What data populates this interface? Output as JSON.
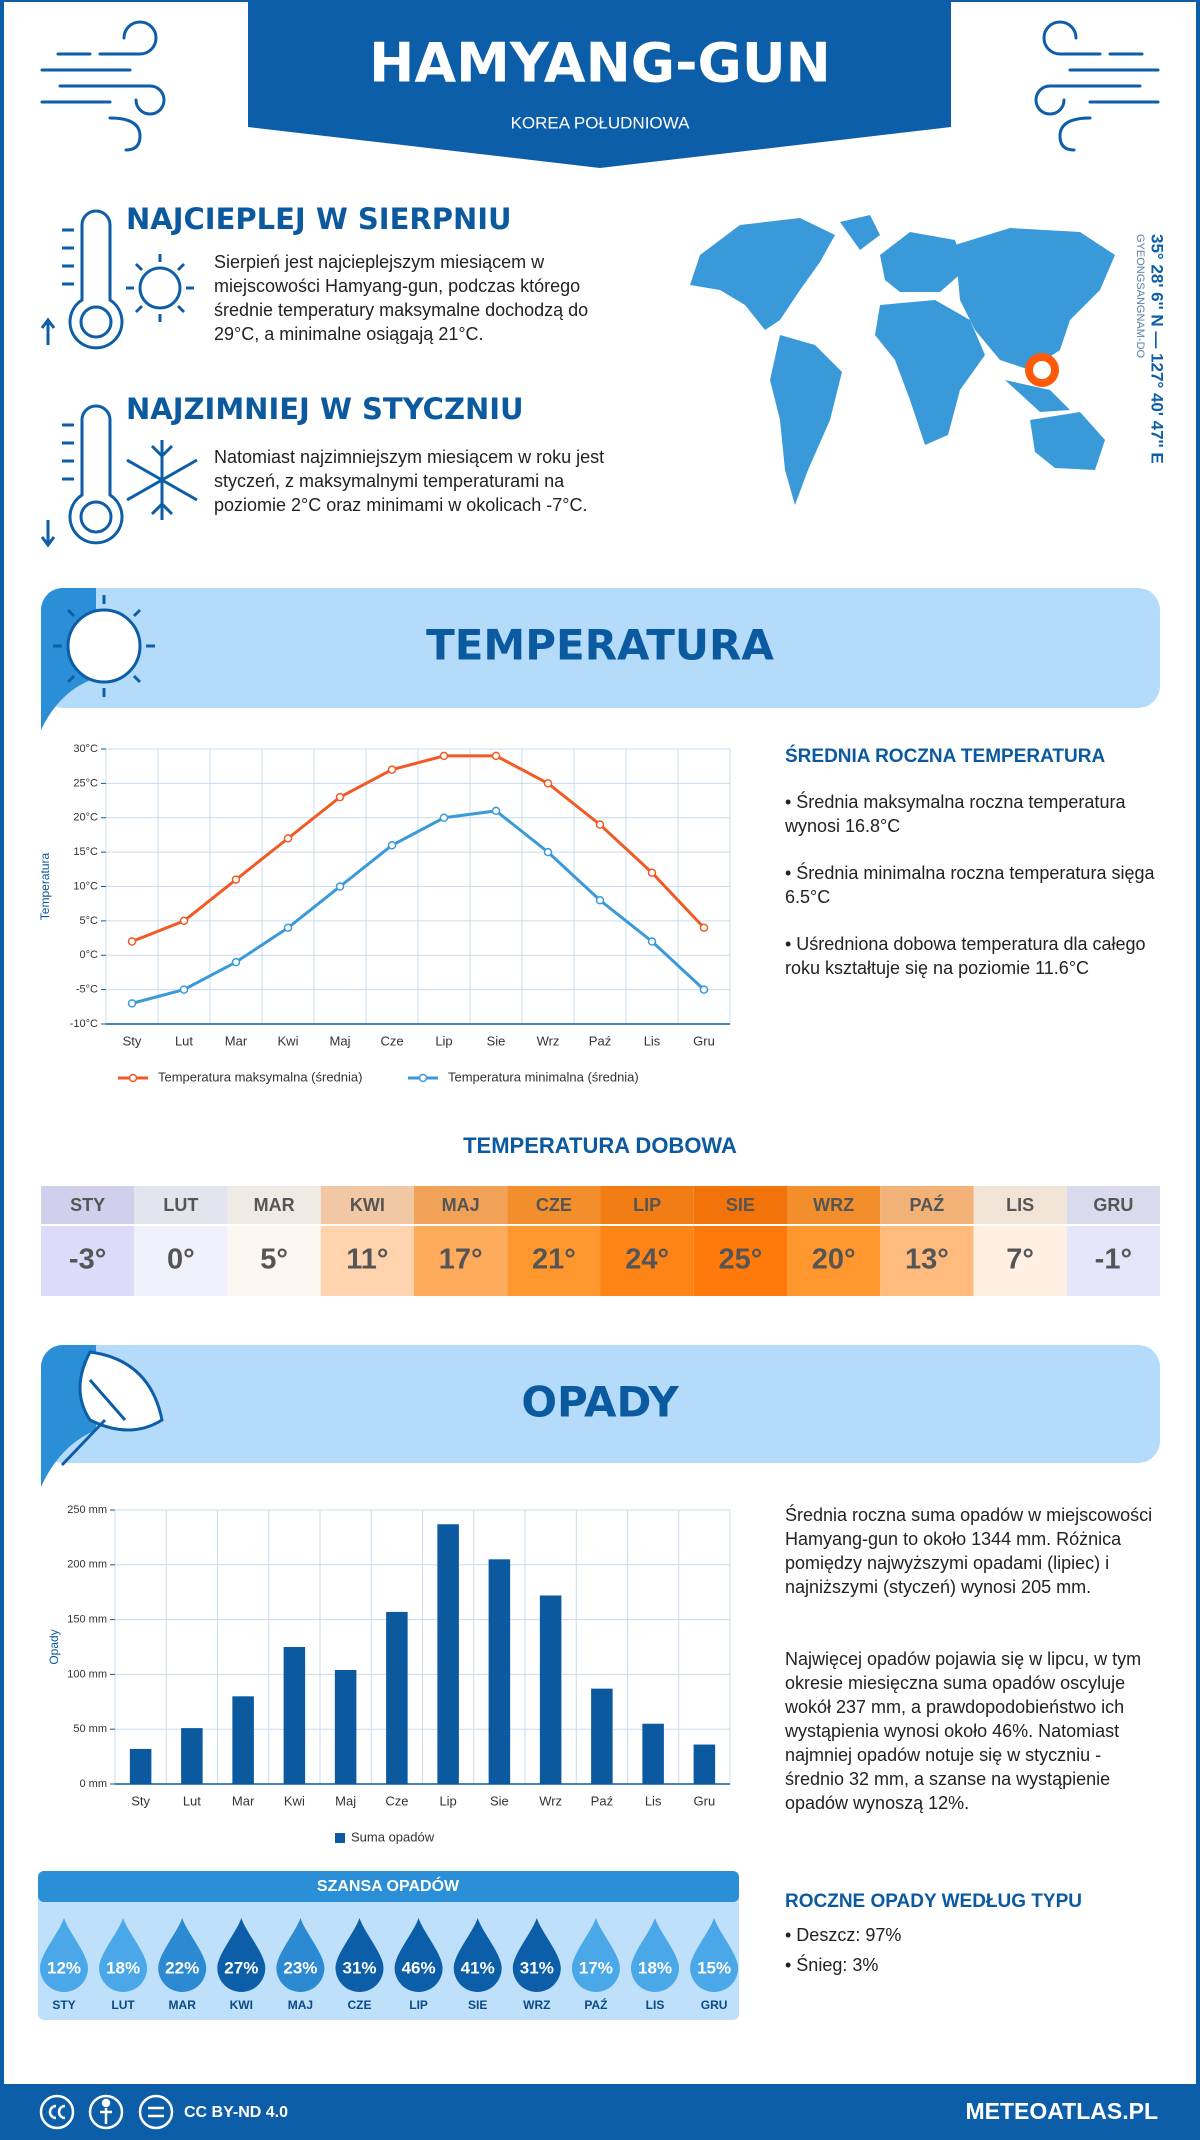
{
  "header": {
    "title": "HAMYANG-GUN",
    "subtitle": "KOREA POŁUDNIOWA"
  },
  "facts": [
    {
      "heading": "NAJCIEPLEJ W SIERPNIU",
      "text": "Sierpień jest najcieplejszym miesiącem w miejscowości Hamyang-gun, podczas którego średnie temperatury maksymalne dochodzą do 29°C, a minimalne osiągają 21°C."
    },
    {
      "heading": "NAJZIMNIEJ W STYCZNIU",
      "text": "Natomiast najzimniejszym miesiącem w roku jest styczeń, z maksymalnymi temperaturami na poziomie 2°C oraz minimami w okolicach -7°C."
    }
  ],
  "location": {
    "coordinates": "35° 28' 6'' N — 127° 40' 47'' E",
    "region": "GYEONGSANGNAM-DO"
  },
  "sections": {
    "temperature": "TEMPERATURA",
    "precipitation": "OPADY"
  },
  "chart_data": [
    {
      "type": "line",
      "y_label": "Temperatura",
      "categories": [
        "Sty",
        "Lut",
        "Mar",
        "Kwi",
        "Maj",
        "Cze",
        "Lip",
        "Sie",
        "Wrz",
        "Paź",
        "Lis",
        "Gru"
      ],
      "series": [
        {
          "name": "Temperatura maksymalna (średnia)",
          "color": "#f15a24",
          "values": [
            2,
            5,
            11,
            17,
            23,
            27,
            29,
            29,
            25,
            19,
            12,
            4
          ]
        },
        {
          "name": "Temperatura minimalna (średnia)",
          "color": "#3a9ad9",
          "values": [
            -7,
            -5,
            -1,
            4,
            10,
            16,
            20,
            21,
            15,
            8,
            2,
            -5
          ]
        }
      ],
      "ylim": [
        -10,
        30
      ],
      "yticks": [
        {
          "value": -10,
          "label": "-10°C"
        },
        {
          "value": -5,
          "label": "-5°C"
        },
        {
          "value": 0,
          "label": "0°C"
        },
        {
          "value": 5,
          "label": "5°C"
        },
        {
          "value": 10,
          "label": "10°C"
        },
        {
          "value": 15,
          "label": "15°C"
        },
        {
          "value": 20,
          "label": "20°C"
        },
        {
          "value": 25,
          "label": "25°C"
        },
        {
          "value": 30,
          "label": "30°C"
        }
      ],
      "grid": true
    },
    {
      "type": "bar",
      "y_label": "Opady",
      "categories": [
        "Sty",
        "Lut",
        "Mar",
        "Kwi",
        "Maj",
        "Cze",
        "Lip",
        "Sie",
        "Wrz",
        "Paź",
        "Lis",
        "Gru"
      ],
      "series": [
        {
          "name": "Suma opadów",
          "color": "#0b5aa0",
          "values": [
            32,
            51,
            80,
            125,
            104,
            157,
            237,
            205,
            172,
            87,
            55,
            36
          ]
        }
      ],
      "ylim": [
        0,
        250
      ],
      "yticks": [
        {
          "value": 0,
          "label": "0 mm"
        },
        {
          "value": 50,
          "label": "50 mm"
        },
        {
          "value": 100,
          "label": "100 mm"
        },
        {
          "value": 150,
          "label": "150 mm"
        },
        {
          "value": 200,
          "label": "200 mm"
        },
        {
          "value": 250,
          "label": "250 mm"
        }
      ],
      "grid": true
    }
  ],
  "temperature_summary": {
    "heading": "ŚREDNIA ROCZNA TEMPERATURA",
    "bullets": [
      "• Średnia maksymalna roczna temperatura wynosi 16.8°C",
      "• Średnia minimalna roczna temperatura sięga 6.5°C",
      "• Uśredniona dobowa temperatura dla całego roku kształtuje się na poziomie 11.6°C"
    ]
  },
  "daily": {
    "title": "TEMPERATURA DOBOWA",
    "months": [
      "STY",
      "LUT",
      "MAR",
      "KWI",
      "MAJ",
      "CZE",
      "LIP",
      "SIE",
      "WRZ",
      "PAŹ",
      "LIS",
      "GRU"
    ],
    "values": [
      "-3°",
      "0°",
      "5°",
      "11°",
      "17°",
      "21°",
      "24°",
      "25°",
      "20°",
      "13°",
      "7°",
      "-1°"
    ],
    "colors": [
      "#dcdcfa",
      "#f1f1fb",
      "#fdf7f1",
      "#ffd3ad",
      "#ffab5c",
      "#ff962e",
      "#ff8417",
      "#ff7a0a",
      "#ff962e",
      "#ffbb7d",
      "#fff0e3",
      "#e6e6fb"
    ]
  },
  "precipitation_summary": {
    "paragraphs": [
      "Średnia roczna suma opadów w miejscowości Hamyang-gun to około 1344 mm. Różnica pomiędzy najwyższymi opadami (lipiec) i najniższymi (styczeń) wynosi 205 mm.",
      "Najwięcej opadów pojawia się w lipcu, w tym okresie miesięczna suma opadów oscyluje wokół 237 mm, a prawdopodobieństwo ich wystąpienia wynosi około 46%. Natomiast najmniej opadów notuje się w styczniu - średnio 32 mm, a szanse na wystąpienie opadów wynoszą 12%."
    ]
  },
  "chance": {
    "title": "SZANSA OPADÓW",
    "months": [
      "STY",
      "LUT",
      "MAR",
      "KWI",
      "MAJ",
      "CZE",
      "LIP",
      "SIE",
      "WRZ",
      "PAŹ",
      "LIS",
      "GRU"
    ],
    "values": [
      "12%",
      "18%",
      "22%",
      "27%",
      "23%",
      "31%",
      "46%",
      "41%",
      "31%",
      "17%",
      "18%",
      "15%"
    ],
    "colors": [
      "#4aa8e8",
      "#4aa8e8",
      "#2b8ad2",
      "#0d5ea8",
      "#2b8ad2",
      "#0d5ea8",
      "#0d5ea8",
      "#0d5ea8",
      "#0d5ea8",
      "#4aa8e8",
      "#4aa8e8",
      "#4aa8e8"
    ]
  },
  "precipitation_type": {
    "heading": "ROCZNE OPADY WEDŁUG TYPU",
    "items": [
      "• Deszcz: 97%",
      "• Śnieg: 3%"
    ]
  },
  "footer": {
    "license": "CC BY-ND 4.0",
    "site": "METEOATLAS.PL"
  }
}
